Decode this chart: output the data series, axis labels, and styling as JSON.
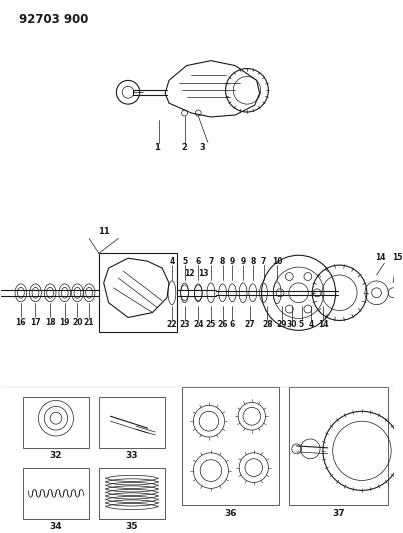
{
  "title": "92703 900",
  "bg_color": "#ffffff",
  "line_color": "#1a1a1a",
  "fig_width": 4.03,
  "fig_height": 5.33,
  "dpi": 100,
  "title_fontsize": 8.5,
  "title_fontweight": "bold"
}
